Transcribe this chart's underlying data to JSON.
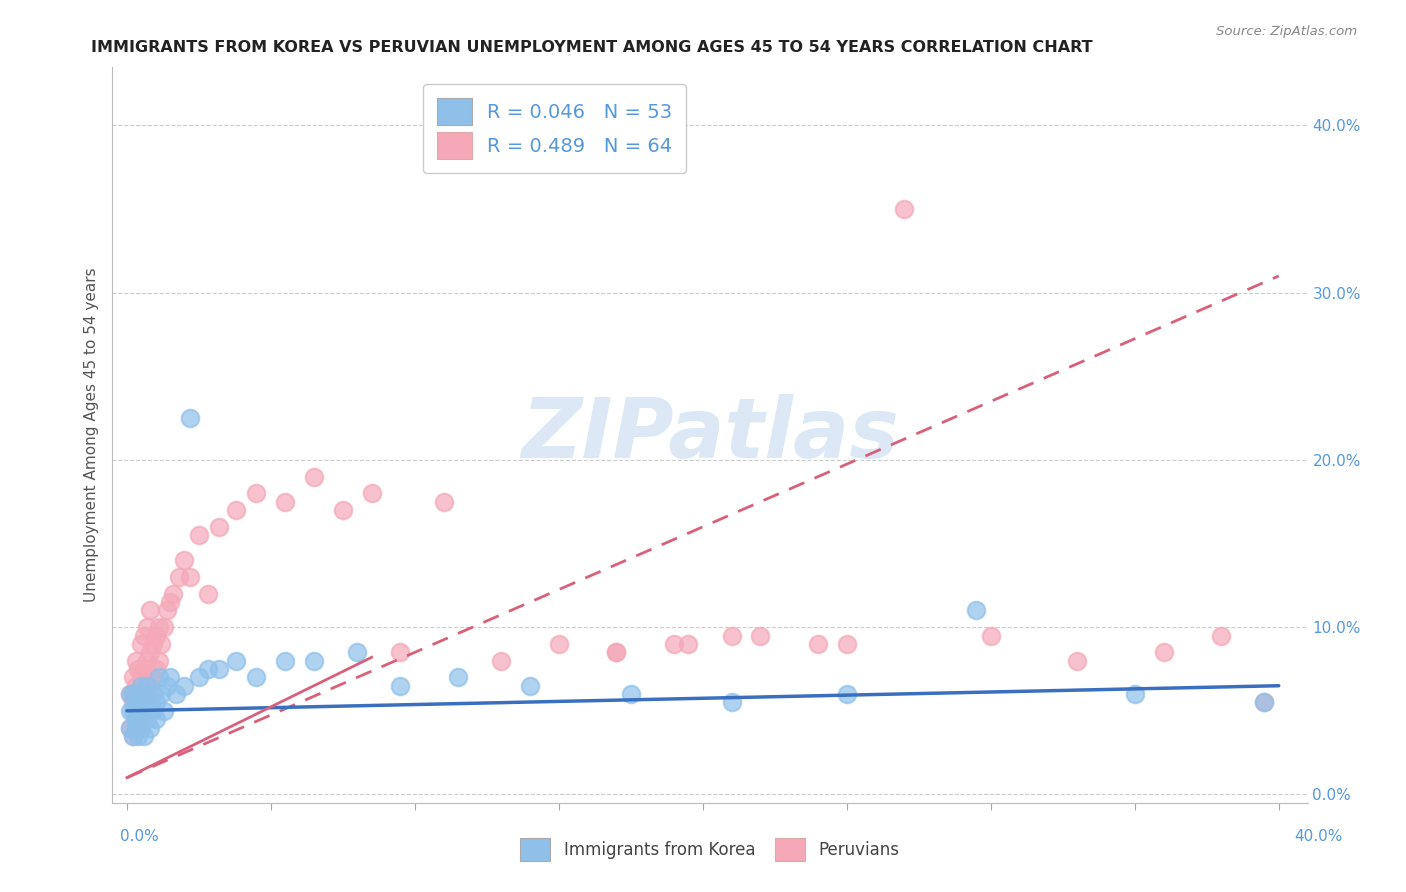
{
  "title": "IMMIGRANTS FROM KOREA VS PERUVIAN UNEMPLOYMENT AMONG AGES 45 TO 54 YEARS CORRELATION CHART",
  "source": "Source: ZipAtlas.com",
  "ylabel": "Unemployment Among Ages 45 to 54 years",
  "legend_korea": "Immigrants from Korea",
  "legend_peruvian": "Peruvians",
  "R_korea": "R = 0.046",
  "N_korea": "N = 53",
  "R_peruvian": "R = 0.489",
  "N_peruvian": "N = 64",
  "color_korea": "#8ec0ea",
  "color_peruvian": "#f4a8b8",
  "color_trendline_korea": "#3a6fbf",
  "color_trendline_peruvian": "#d9607a",
  "watermark_color": "#dce8f5",
  "korea_x": [
    0.001,
    0.001,
    0.001,
    0.002,
    0.002,
    0.002,
    0.003,
    0.003,
    0.003,
    0.004,
    0.004,
    0.004,
    0.005,
    0.005,
    0.005,
    0.005,
    0.006,
    0.006,
    0.006,
    0.007,
    0.007,
    0.007,
    0.008,
    0.008,
    0.009,
    0.009,
    0.01,
    0.01,
    0.011,
    0.012,
    0.013,
    0.014,
    0.015,
    0.017,
    0.02,
    0.022,
    0.025,
    0.028,
    0.032,
    0.038,
    0.045,
    0.055,
    0.065,
    0.08,
    0.095,
    0.115,
    0.14,
    0.175,
    0.21,
    0.25,
    0.295,
    0.35,
    0.395
  ],
  "korea_y": [
    0.05,
    0.04,
    0.06,
    0.035,
    0.05,
    0.06,
    0.045,
    0.055,
    0.04,
    0.05,
    0.06,
    0.035,
    0.045,
    0.055,
    0.065,
    0.04,
    0.05,
    0.06,
    0.035,
    0.045,
    0.055,
    0.065,
    0.05,
    0.04,
    0.05,
    0.06,
    0.045,
    0.055,
    0.07,
    0.06,
    0.05,
    0.065,
    0.07,
    0.06,
    0.065,
    0.225,
    0.07,
    0.075,
    0.075,
    0.08,
    0.07,
    0.08,
    0.08,
    0.085,
    0.065,
    0.07,
    0.065,
    0.06,
    0.055,
    0.06,
    0.11,
    0.06,
    0.055
  ],
  "peruvian_x": [
    0.001,
    0.001,
    0.002,
    0.002,
    0.002,
    0.003,
    0.003,
    0.003,
    0.004,
    0.004,
    0.004,
    0.005,
    0.005,
    0.005,
    0.006,
    0.006,
    0.006,
    0.007,
    0.007,
    0.007,
    0.008,
    0.008,
    0.008,
    0.009,
    0.009,
    0.01,
    0.01,
    0.011,
    0.011,
    0.012,
    0.013,
    0.014,
    0.015,
    0.016,
    0.018,
    0.02,
    0.022,
    0.025,
    0.028,
    0.032,
    0.038,
    0.045,
    0.055,
    0.065,
    0.075,
    0.085,
    0.095,
    0.11,
    0.13,
    0.15,
    0.17,
    0.195,
    0.22,
    0.25,
    0.27,
    0.3,
    0.33,
    0.36,
    0.38,
    0.395,
    0.17,
    0.19,
    0.21,
    0.24
  ],
  "peruvian_y": [
    0.04,
    0.06,
    0.035,
    0.055,
    0.07,
    0.045,
    0.065,
    0.08,
    0.04,
    0.06,
    0.075,
    0.05,
    0.07,
    0.09,
    0.055,
    0.075,
    0.095,
    0.06,
    0.08,
    0.1,
    0.065,
    0.085,
    0.11,
    0.07,
    0.09,
    0.075,
    0.095,
    0.08,
    0.1,
    0.09,
    0.1,
    0.11,
    0.115,
    0.12,
    0.13,
    0.14,
    0.13,
    0.155,
    0.12,
    0.16,
    0.17,
    0.18,
    0.175,
    0.19,
    0.17,
    0.18,
    0.085,
    0.175,
    0.08,
    0.09,
    0.085,
    0.09,
    0.095,
    0.09,
    0.35,
    0.095,
    0.08,
    0.085,
    0.095,
    0.055,
    0.085,
    0.09,
    0.095,
    0.09
  ],
  "xlim": [
    -0.005,
    0.41
  ],
  "ylim": [
    -0.005,
    0.435
  ],
  "ytick_vals": [
    0.0,
    0.1,
    0.2,
    0.3,
    0.4
  ],
  "ytick_labels": [
    "0.0%",
    "10.0%",
    "20.0%",
    "30.0%",
    "40.0%"
  ],
  "xtick_positions": [
    0.0,
    0.05,
    0.1,
    0.15,
    0.2,
    0.25,
    0.3,
    0.35,
    0.4
  ],
  "background_color": "#ffffff",
  "grid_color": "#c8c8c8",
  "title_fontsize": 11.5,
  "source_fontsize": 9.5,
  "axis_label_fontsize": 11,
  "tick_label_fontsize": 11,
  "legend_fontsize": 14
}
